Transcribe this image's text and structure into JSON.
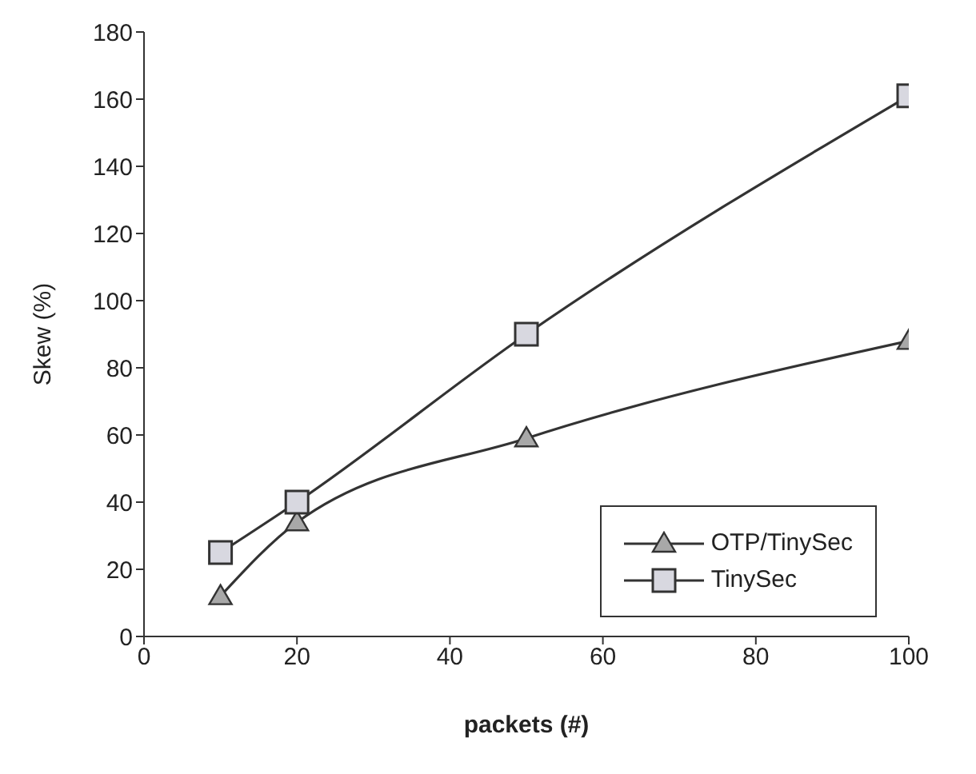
{
  "chart_data": {
    "type": "line",
    "xlabel": "packets (#)",
    "ylabel": "Skew (%)",
    "x": [
      10,
      20,
      50,
      100
    ],
    "series": [
      {
        "name": "OTP/TinySec",
        "color": "#333333",
        "marker": "triangle",
        "values": [
          12,
          34,
          59,
          88
        ]
      },
      {
        "name": "TinySec",
        "color": "#333333",
        "marker": "square",
        "values": [
          25,
          40,
          90,
          161
        ]
      }
    ],
    "xlim": [
      0,
      100
    ],
    "xticks": [
      0,
      20,
      40,
      60,
      80,
      100
    ],
    "ylim": [
      0,
      180
    ],
    "yticks": [
      0,
      20,
      40,
      60,
      80,
      100,
      120,
      140,
      160,
      180
    ],
    "grid": false,
    "legend": "bottom right",
    "line_style": "solid"
  }
}
